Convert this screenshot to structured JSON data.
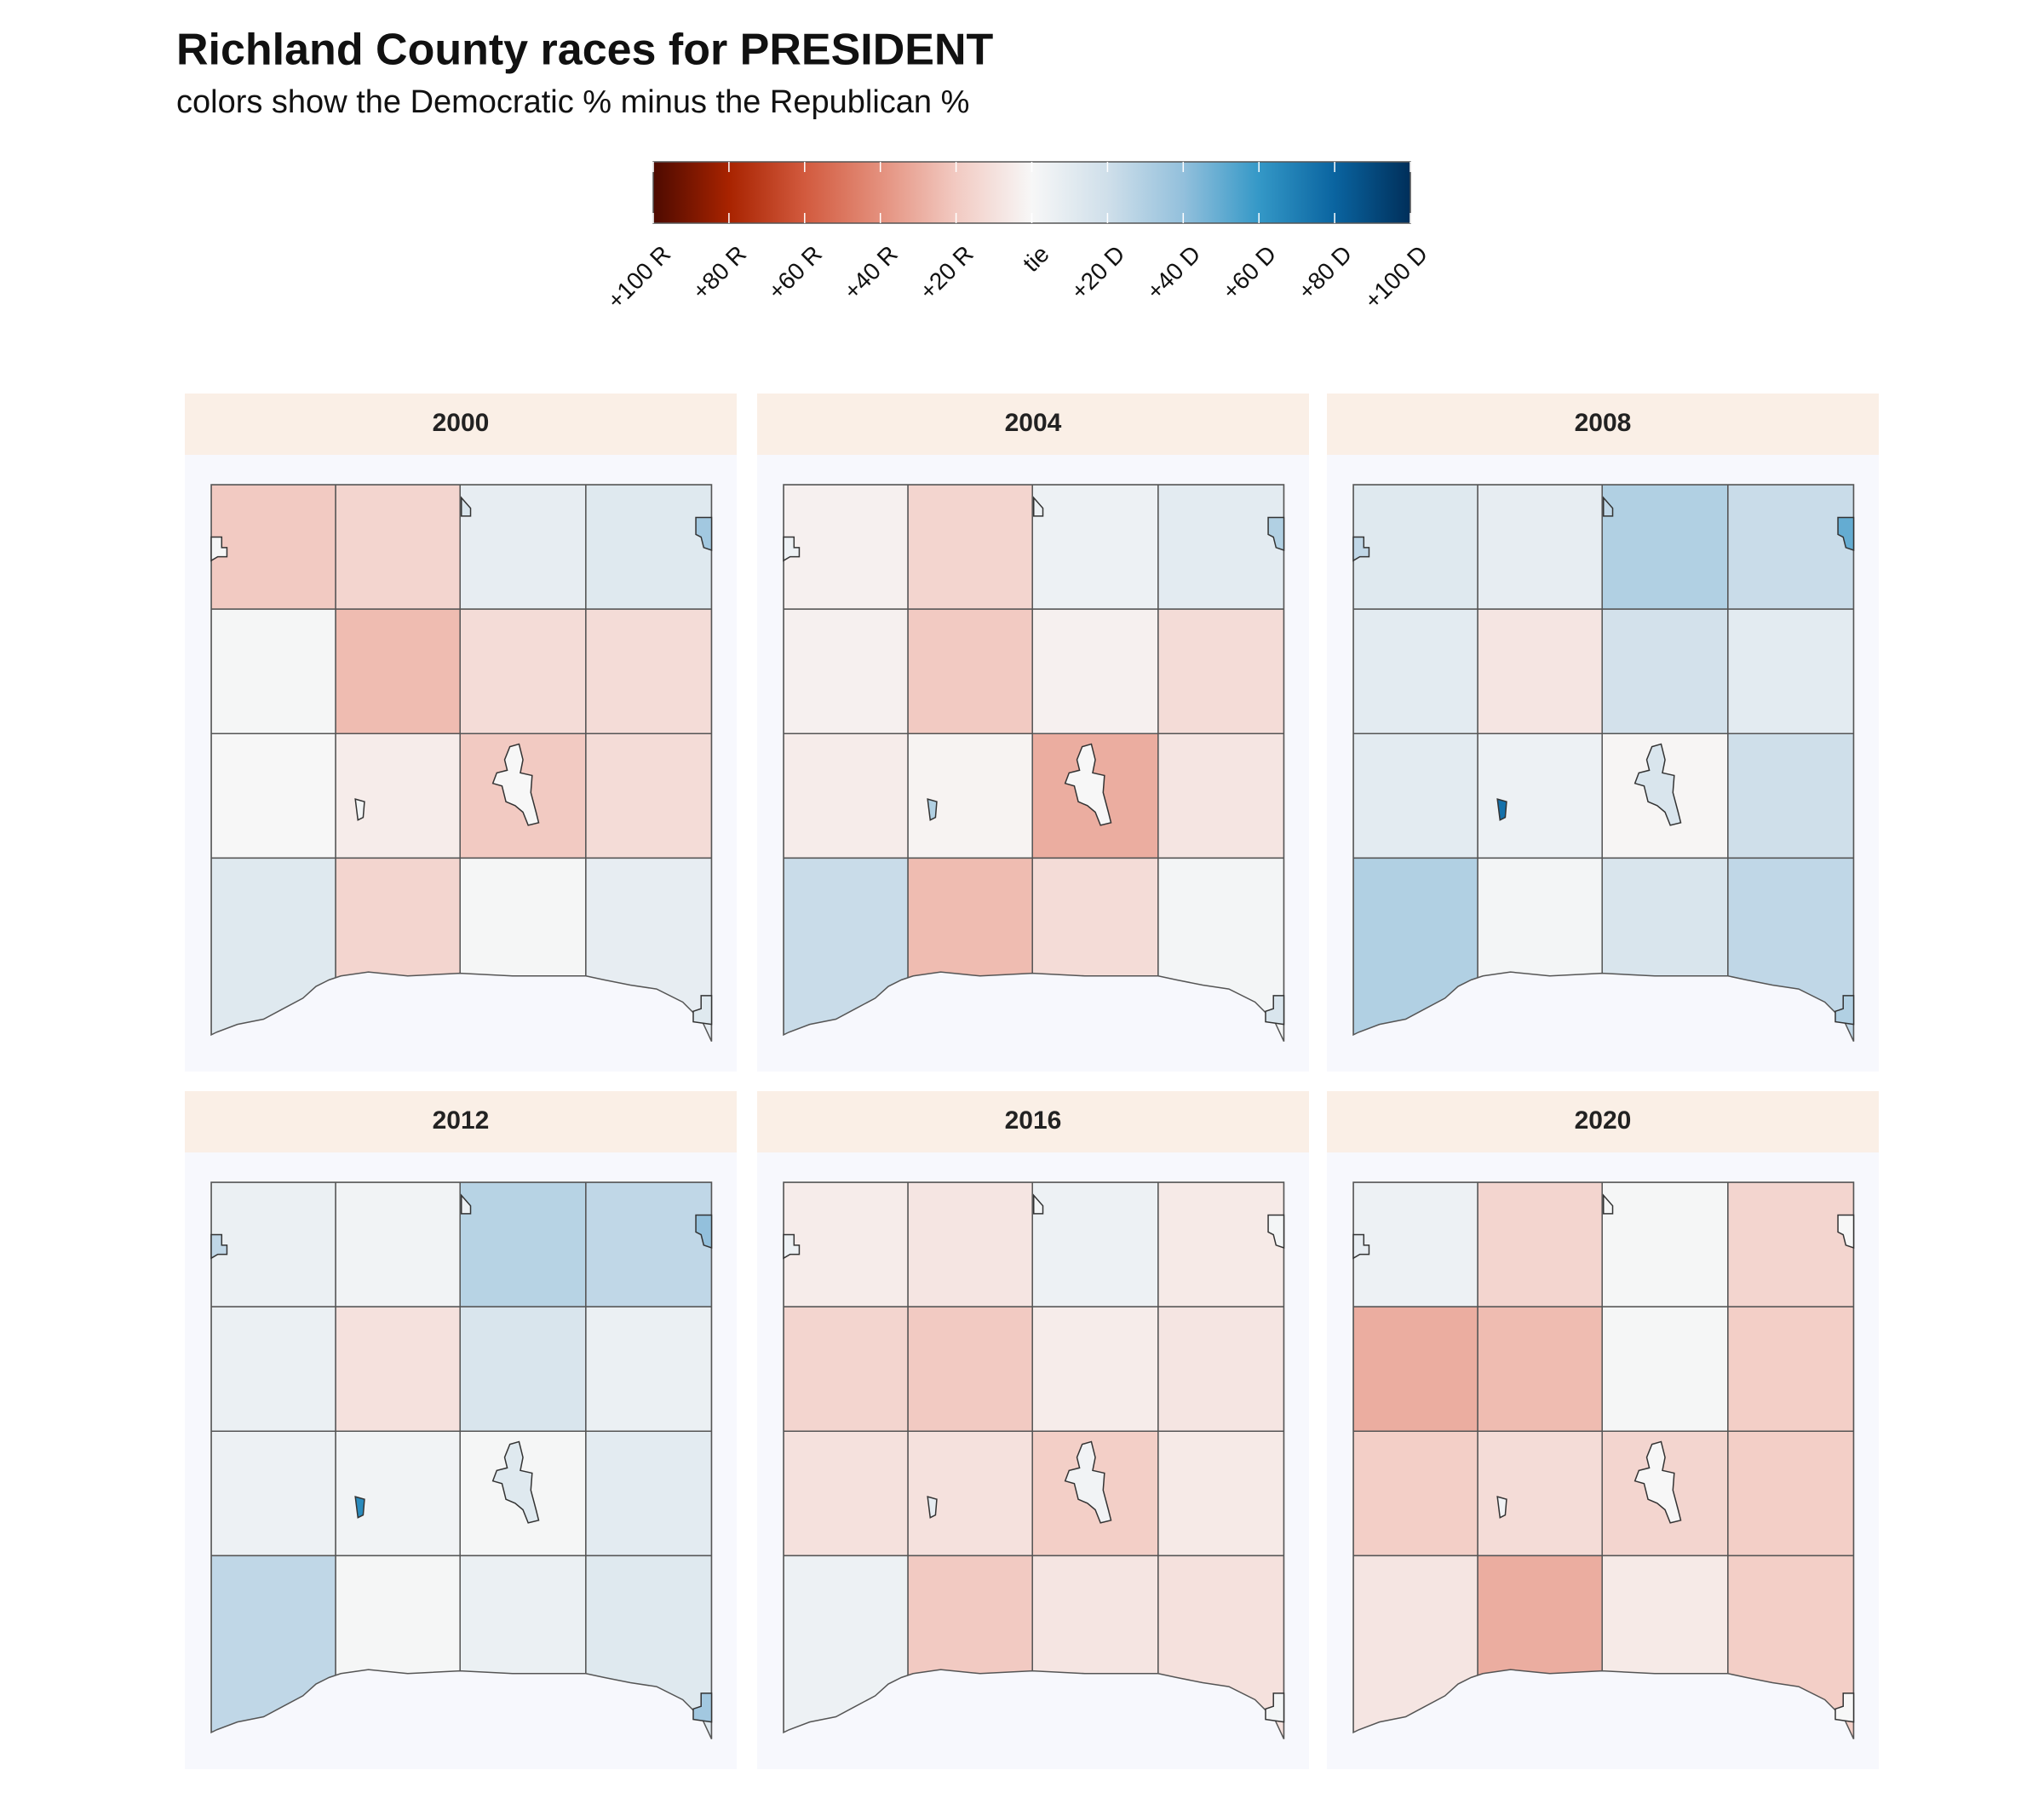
{
  "chart_data": {
    "type": "choropleth",
    "title": "Richland County races for PRESIDENT",
    "subtitle": "colors show the Democratic % minus the Republican %",
    "legend": {
      "xlim": [
        -100,
        100
      ],
      "xticks": [
        {
          "value": -100,
          "label": "+100 R"
        },
        {
          "value": -80,
          "label": "+80 R"
        },
        {
          "value": -60,
          "label": "+60 R"
        },
        {
          "value": -40,
          "label": "+40 R"
        },
        {
          "value": -20,
          "label": "+20 R"
        },
        {
          "value": 0,
          "label": "tie"
        },
        {
          "value": 20,
          "label": "+20 D"
        },
        {
          "value": 40,
          "label": "+40 D"
        },
        {
          "value": 60,
          "label": "+60 D"
        },
        {
          "value": 80,
          "label": "+80 D"
        },
        {
          "value": 100,
          "label": "+100 D"
        }
      ],
      "palette": [
        "#4d0a00",
        "#a82300",
        "#d25a3e",
        "#e4907d",
        "#f2cac2",
        "#f7f7f7",
        "#cfdfea",
        "#93c0dc",
        "#3498c7",
        "#0a64a0",
        "#002f5a"
      ]
    },
    "panels": [
      {
        "title": "2000",
        "townships": [
          [
            -20,
            -15,
            8,
            12
          ],
          [
            1,
            -25,
            -12,
            -12
          ],
          [
            0,
            -5,
            -20,
            -12
          ],
          [
            12,
            -15,
            1,
            8
          ]
        ],
        "towns": [
          1,
          15,
          35,
          0,
          2,
          12
        ]
      },
      {
        "title": "2004",
        "townships": [
          [
            -3,
            -15,
            5,
            10
          ],
          [
            -3,
            -20,
            -3,
            -12
          ],
          [
            -5,
            -2,
            -30,
            -8
          ],
          [
            22,
            -25,
            -12,
            2
          ]
        ],
        "towns": [
          5,
          5,
          30,
          0,
          30,
          15
        ]
      },
      {
        "title": "2008",
        "townships": [
          [
            12,
            8,
            30,
            22
          ],
          [
            10,
            -8,
            18,
            10
          ],
          [
            10,
            5,
            -1,
            20
          ],
          [
            30,
            2,
            15,
            25
          ]
        ],
        "towns": [
          25,
          25,
          50,
          15,
          75,
          30
        ]
      },
      {
        "title": "2012",
        "townships": [
          [
            6,
            3,
            28,
            25
          ],
          [
            6,
            -10,
            15,
            6
          ],
          [
            5,
            3,
            1,
            10
          ],
          [
            25,
            1,
            6,
            12
          ]
        ],
        "towns": [
          25,
          5,
          40,
          12,
          65,
          35
        ]
      },
      {
        "title": "2016",
        "townships": [
          [
            -5,
            -8,
            5,
            -6
          ],
          [
            -15,
            -20,
            -5,
            -8
          ],
          [
            -10,
            -10,
            -18,
            -6
          ],
          [
            5,
            -20,
            -8,
            -10
          ]
        ],
        "towns": [
          5,
          2,
          2,
          3,
          8,
          2
        ]
      },
      {
        "title": "2020",
        "townships": [
          [
            5,
            -15,
            1,
            -15
          ],
          [
            -30,
            -25,
            1,
            -18
          ],
          [
            -18,
            -12,
            -15,
            -18
          ],
          [
            -8,
            -30,
            -6,
            -18
          ]
        ],
        "towns": [
          8,
          1,
          0,
          0,
          3,
          0
        ]
      }
    ]
  }
}
